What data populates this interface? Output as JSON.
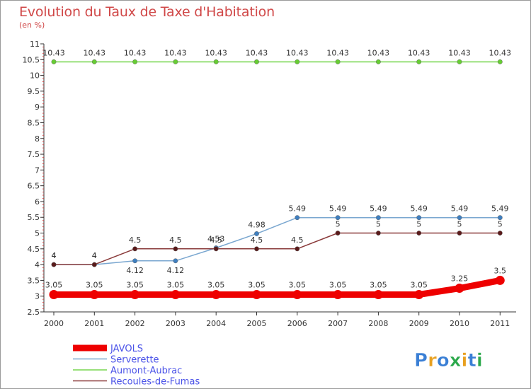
{
  "title": "Evolution du Taux de Taxe d'Habitation",
  "subtitle": "(en %)",
  "logo_text": "Proxiti",
  "chart_data": {
    "type": "line",
    "title": "Evolution du Taux de Taxe d'Habitation",
    "ylabel": "(en %)",
    "xlabel": "",
    "x": [
      "2000",
      "2001",
      "2002",
      "2003",
      "2004",
      "2005",
      "2006",
      "2007",
      "2008",
      "2009",
      "2010",
      "2011"
    ],
    "ylim": [
      2.5,
      11
    ],
    "yticks": [
      "2.5",
      "3",
      "3.5",
      "4",
      "4.5",
      "5",
      "5.5",
      "6",
      "6.5",
      "7",
      "7.5",
      "8",
      "8.5",
      "9",
      "9.5",
      "10",
      "10.5",
      "11"
    ],
    "grid": false,
    "legend_position": "bottom-left",
    "series": [
      {
        "name": "JAVOLS",
        "color": "#ee0000",
        "values": [
          3.05,
          3.05,
          3.05,
          3.05,
          3.05,
          3.05,
          3.05,
          3.05,
          3.05,
          3.05,
          3.25,
          3.5
        ],
        "labels": [
          "3.05",
          "3.05",
          "3.05",
          "3.05",
          "3.05",
          "3.05",
          "3.05",
          "3.05",
          "3.05",
          "3.05",
          "3.25",
          "3.5"
        ]
      },
      {
        "name": "Serverette",
        "color": "#7aa7d0",
        "marker_color": "#3f7fc0",
        "values": [
          4,
          4,
          4.12,
          4.12,
          4.53,
          4.98,
          5.49,
          5.49,
          5.49,
          5.49,
          5.49,
          5.49
        ],
        "labels": [
          "4",
          "4",
          "4.12",
          "4.12",
          "4.53",
          "4.98",
          "5.49",
          "5.49",
          "5.49",
          "5.49",
          "5.49",
          "5.49"
        ]
      },
      {
        "name": "Aumont-Aubrac",
        "color": "#99e07a",
        "marker_color": "#66cc33",
        "values": [
          10.43,
          10.43,
          10.43,
          10.43,
          10.43,
          10.43,
          10.43,
          10.43,
          10.43,
          10.43,
          10.43,
          10.43
        ],
        "labels": [
          "10.43",
          "10.43",
          "10.43",
          "10.43",
          "10.43",
          "10.43",
          "10.43",
          "10.43",
          "10.43",
          "10.43",
          "10.43",
          "10.43"
        ]
      },
      {
        "name": "Recoules-de-Fumas",
        "color": "#8a3a3a",
        "marker_color": "#5a1a1a",
        "values": [
          4,
          4,
          4.5,
          4.5,
          4.5,
          4.5,
          4.5,
          5,
          5,
          5,
          5,
          5
        ],
        "labels": [
          "4",
          "4",
          "4.5",
          "4.5",
          "4.5",
          "4.5",
          "4.5",
          "5",
          "5",
          "5",
          "5",
          "5"
        ]
      }
    ]
  }
}
